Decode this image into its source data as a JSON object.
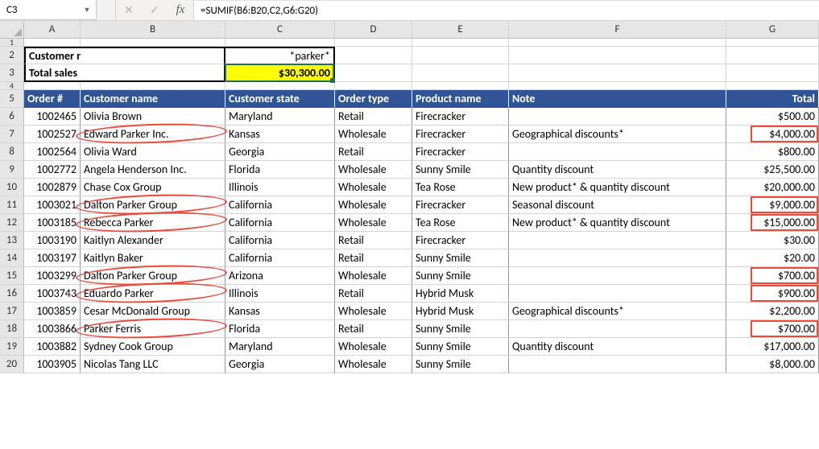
{
  "formula_bar": {
    "cell_ref": "C3",
    "formula": "=SUMIF(B6:B20,C2,G6:G20)"
  },
  "columns": [
    "A",
    "B",
    "C",
    "D",
    "E",
    "F",
    "G"
  ],
  "row_numbers": [
    1,
    2,
    3,
    4,
    5,
    6,
    7,
    8,
    9,
    10,
    11,
    12,
    13,
    14,
    15,
    16,
    17,
    18,
    19,
    20
  ],
  "summary": {
    "label1": "Customer name contains",
    "value1": "*parker*",
    "label2": "Total sales",
    "value2": "$30,300.00"
  },
  "headers": {
    "order": "Order #",
    "customer": "Customer name",
    "state": "Customer state",
    "type": "Order type",
    "product": "Product name",
    "note": "Note",
    "total": "Total"
  },
  "rows": [
    {
      "order": "1002465",
      "customer": "Olivia Brown",
      "state": "Maryland",
      "type": "Retail",
      "product": "Firecracker",
      "note": "",
      "total": "$500.00",
      "hl": false,
      "box": false
    },
    {
      "order": "1002527",
      "customer": "Edward Parker Inc.",
      "state": "Kansas",
      "type": "Wholesale",
      "product": "Firecracker",
      "note": "Geographical discounts*",
      "total": "$4,000.00",
      "hl": true,
      "box": true
    },
    {
      "order": "1002564",
      "customer": "Olivia Ward",
      "state": "Georgia",
      "type": "Retail",
      "product": "Firecracker",
      "note": "",
      "total": "$800.00",
      "hl": false,
      "box": false
    },
    {
      "order": "1002772",
      "customer": "Angela Henderson Inc.",
      "state": "Florida",
      "type": "Wholesale",
      "product": "Sunny Smile",
      "note": "Quantity discount",
      "total": "$25,500.00",
      "hl": false,
      "box": false
    },
    {
      "order": "1002879",
      "customer": "Chase Cox Group",
      "state": "Illinois",
      "type": "Wholesale",
      "product": "Tea Rose",
      "note": "New product* & quantity discount",
      "total": "$20,000.00",
      "hl": false,
      "box": false
    },
    {
      "order": "1003021",
      "customer": "Dalton Parker Group",
      "state": "California",
      "type": "Wholesale",
      "product": "Firecracker",
      "note": "Seasonal discount",
      "total": "$9,000.00",
      "hl": true,
      "box": true
    },
    {
      "order": "1003185",
      "customer": "Rebecca Parker",
      "state": "California",
      "type": "Wholesale",
      "product": "Tea Rose",
      "note": "New product* & quantity discount",
      "total": "$15,000.00",
      "hl": true,
      "box": true
    },
    {
      "order": "1003190",
      "customer": "Kaitlyn Alexander",
      "state": "California",
      "type": "Retail",
      "product": "Firecracker",
      "note": "",
      "total": "$30.00",
      "hl": false,
      "box": false
    },
    {
      "order": "1003197",
      "customer": "Kaitlyn Baker",
      "state": "California",
      "type": "Retail",
      "product": "Sunny Smile",
      "note": "",
      "total": "$20.00",
      "hl": false,
      "box": false
    },
    {
      "order": "1003299",
      "customer": "Dalton Parker Group",
      "state": "Arizona",
      "type": "Wholesale",
      "product": "Sunny Smile",
      "note": "",
      "total": "$700.00",
      "hl": true,
      "box": true
    },
    {
      "order": "1003743",
      "customer": "Eduardo Parker",
      "state": "Illinois",
      "type": "Retail",
      "product": "Hybrid Musk",
      "note": "",
      "total": "$900.00",
      "hl": true,
      "box": true
    },
    {
      "order": "1003859",
      "customer": "Cesar McDonald Group",
      "state": "Kansas",
      "type": "Wholesale",
      "product": "Hybrid Musk",
      "note": "Geographical discounts*",
      "total": "$2,200.00",
      "hl": false,
      "box": false
    },
    {
      "order": "1003866",
      "customer": "Parker Ferris",
      "state": "Florida",
      "type": "Retail",
      "product": "Sunny Smile",
      "note": "",
      "total": "$700.00",
      "hl": true,
      "box": true
    },
    {
      "order": "1003882",
      "customer": "Sydney Cook Group",
      "state": "Maryland",
      "type": "Wholesale",
      "product": "Sunny Smile",
      "note": "Quantity discount",
      "total": "$17,000.00",
      "hl": false,
      "box": false
    },
    {
      "order": "1003905",
      "customer": "Nicolas Tang LLC",
      "state": "Georgia",
      "type": "Wholesale",
      "product": "Sunny Smile",
      "note": "",
      "total": "$8,000.00",
      "hl": false,
      "box": false
    }
  ],
  "colors": {
    "header_bg": "#305496",
    "highlight_bg": "#ffff00",
    "ellipse": "#e74c3c",
    "active": "#217346"
  }
}
